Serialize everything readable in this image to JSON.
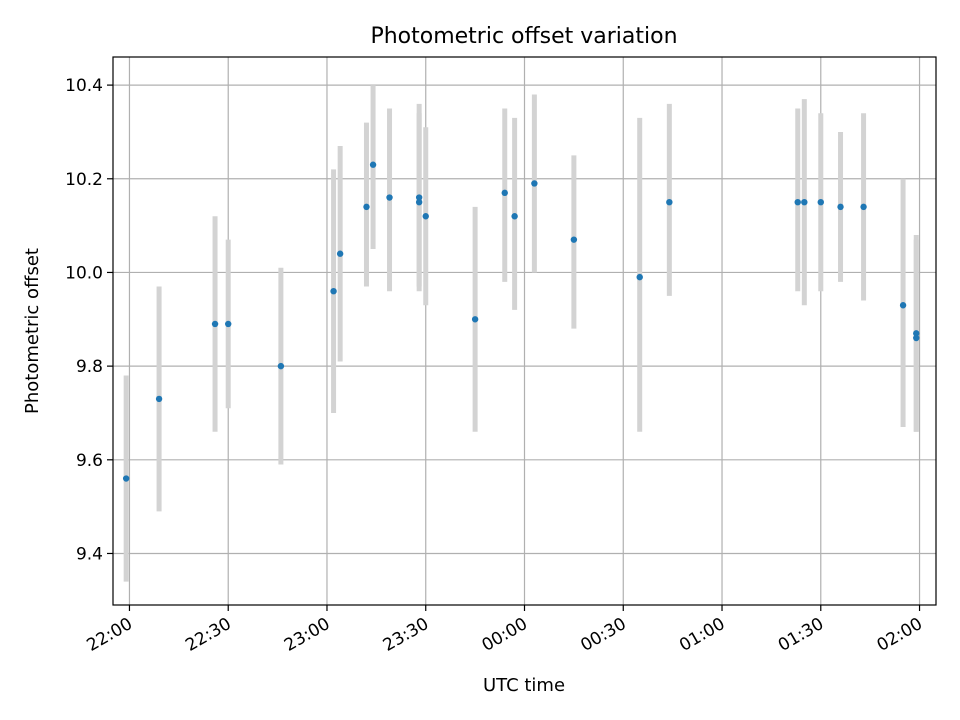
{
  "chart_data": {
    "type": "scatter",
    "title": "Photometric offset variation",
    "xlabel": "UTC time",
    "ylabel": "Photometric offset",
    "x_axis_type": "time",
    "x_range": [
      "21:55",
      "02:05"
    ],
    "ylim": [
      9.29,
      10.46
    ],
    "grid": true,
    "x_ticks": [
      "22:00",
      "22:30",
      "23:00",
      "23:30",
      "00:00",
      "00:30",
      "01:00",
      "01:30",
      "02:00"
    ],
    "y_ticks": [
      "9.4",
      "9.6",
      "9.8",
      "10.0",
      "10.2",
      "10.4"
    ],
    "colors": {
      "points": "#1f77b4",
      "error_bars": "#d3d3d3",
      "grid": "#b0b0b0"
    },
    "points": [
      {
        "x": "21:59",
        "y": 9.56,
        "y_low": 9.34,
        "y_high": 9.78
      },
      {
        "x": "22:09",
        "y": 9.73,
        "y_low": 9.49,
        "y_high": 9.97
      },
      {
        "x": "22:26",
        "y": 9.89,
        "y_low": 9.66,
        "y_high": 10.12
      },
      {
        "x": "22:30",
        "y": 9.89,
        "y_low": 9.71,
        "y_high": 10.07
      },
      {
        "x": "22:46",
        "y": 9.8,
        "y_low": 9.59,
        "y_high": 10.01
      },
      {
        "x": "23:02",
        "y": 9.96,
        "y_low": 9.7,
        "y_high": 10.22
      },
      {
        "x": "23:04",
        "y": 10.04,
        "y_low": 9.81,
        "y_high": 10.27
      },
      {
        "x": "23:12",
        "y": 10.14,
        "y_low": 9.97,
        "y_high": 10.32
      },
      {
        "x": "23:14",
        "y": 10.23,
        "y_low": 10.05,
        "y_high": 10.4
      },
      {
        "x": "23:19",
        "y": 10.16,
        "y_low": 9.96,
        "y_high": 10.35
      },
      {
        "x": "23:28",
        "y": 10.16,
        "y_low": 9.96,
        "y_high": 10.36
      },
      {
        "x": "23:28",
        "y": 10.15,
        "y_low": 9.97,
        "y_high": 10.34
      },
      {
        "x": "23:30",
        "y": 10.12,
        "y_low": 9.93,
        "y_high": 10.31
      },
      {
        "x": "23:45",
        "y": 9.9,
        "y_low": 9.66,
        "y_high": 10.14
      },
      {
        "x": "23:54",
        "y": 10.17,
        "y_low": 9.98,
        "y_high": 10.35
      },
      {
        "x": "23:57",
        "y": 10.12,
        "y_low": 9.92,
        "y_high": 10.33
      },
      {
        "x": "00:03",
        "y": 10.19,
        "y_low": 10.0,
        "y_high": 10.38
      },
      {
        "x": "00:15",
        "y": 10.07,
        "y_low": 9.88,
        "y_high": 10.25
      },
      {
        "x": "00:35",
        "y": 9.99,
        "y_low": 9.66,
        "y_high": 10.33
      },
      {
        "x": "00:44",
        "y": 10.15,
        "y_low": 9.95,
        "y_high": 10.36
      },
      {
        "x": "01:23",
        "y": 10.15,
        "y_low": 9.96,
        "y_high": 10.35
      },
      {
        "x": "01:25",
        "y": 10.15,
        "y_low": 9.93,
        "y_high": 10.37
      },
      {
        "x": "01:30",
        "y": 10.15,
        "y_low": 9.96,
        "y_high": 10.34
      },
      {
        "x": "01:36",
        "y": 10.14,
        "y_low": 9.98,
        "y_high": 10.3
      },
      {
        "x": "01:43",
        "y": 10.14,
        "y_low": 9.94,
        "y_high": 10.34
      },
      {
        "x": "01:55",
        "y": 9.93,
        "y_low": 9.67,
        "y_high": 10.2
      },
      {
        "x": "01:59",
        "y": 9.87,
        "y_low": 9.66,
        "y_high": 10.08
      },
      {
        "x": "01:59",
        "y": 9.86,
        "y_low": 9.66,
        "y_high": 10.07
      }
    ]
  }
}
